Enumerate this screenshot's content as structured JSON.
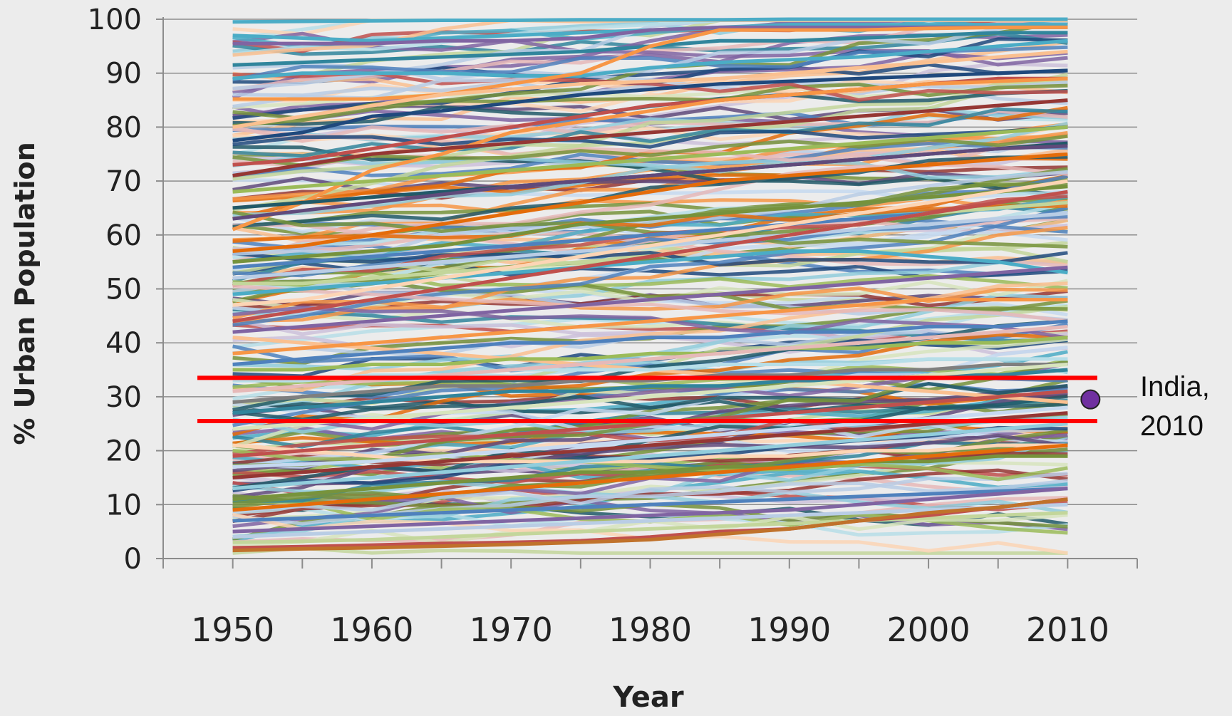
{
  "chart_data": {
    "type": "line",
    "title": "",
    "xlabel": "Year",
    "ylabel": "% Urban Population",
    "xlim": [
      1945,
      2015
    ],
    "ylim": [
      0,
      100
    ],
    "x_ticks": [
      1950,
      1960,
      1970,
      1980,
      1990,
      2000,
      2010
    ],
    "y_ticks": [
      0,
      10,
      20,
      30,
      40,
      50,
      60,
      70,
      80,
      90,
      100
    ],
    "x": [
      1950,
      1955,
      1960,
      1965,
      1970,
      1975,
      1980,
      1985,
      1990,
      1995,
      2000,
      2005,
      2010
    ],
    "grid": "horizontal",
    "legend": "none",
    "series_note": "one line per country (~200 countries)",
    "series": [
      {
        "values": [
          99.5,
          99.6,
          99.7,
          99.8,
          99.8,
          99.9,
          99.9,
          99.9,
          100,
          100,
          100,
          100,
          100
        ],
        "color": "#4bacc6"
      },
      {
        "values": [
          97,
          96.5,
          96,
          96.5,
          97,
          97.5,
          98,
          98.5,
          99,
          99,
          99,
          99,
          99
        ],
        "color": "#4bacc6"
      },
      {
        "values": [
          95.5,
          95.5,
          95.5,
          96,
          96,
          96.5,
          98,
          98.5,
          98.5,
          98.5,
          98.5,
          98.5,
          98.5
        ],
        "color": "#8064a2"
      },
      {
        "values": [
          91.5,
          92,
          92.5,
          93,
          93.5,
          94,
          95,
          96,
          96,
          96.5,
          97,
          97.5,
          97.5
        ],
        "color": "#31859c"
      },
      {
        "values": [
          89,
          90,
          90,
          90,
          89.5,
          89.5,
          91,
          92,
          92.5,
          93,
          94,
          95,
          96
        ],
        "color": "#4bacc6"
      },
      {
        "values": [
          85.2,
          85.2,
          85.2,
          86,
          88,
          90,
          95,
          98,
          98,
          98,
          98.3,
          98.5,
          98.5
        ],
        "color": "#f79646"
      },
      {
        "values": [
          80,
          82,
          84,
          86,
          87,
          88,
          88.5,
          89,
          90,
          91,
          92,
          93,
          94
        ],
        "color": "#fac090"
      },
      {
        "values": [
          77.5,
          79,
          82,
          83,
          84.5,
          86,
          87,
          88,
          88.5,
          89,
          89.5,
          90,
          90.5
        ],
        "color": "#1f497d"
      },
      {
        "values": [
          73,
          74,
          76,
          78,
          80,
          82,
          84,
          85,
          86,
          87,
          88,
          89,
          89
        ],
        "color": "#c0504d"
      },
      {
        "values": [
          61,
          66,
          72,
          75,
          79,
          81,
          83,
          85,
          86,
          87,
          88,
          88.5,
          89
        ],
        "color": "#f79646"
      },
      {
        "values": [
          71,
          73,
          75,
          76,
          77,
          78,
          79,
          80,
          81,
          82,
          83,
          84,
          85
        ],
        "color": "#953734"
      },
      {
        "values": [
          68,
          69,
          70,
          71,
          72,
          73,
          74,
          75,
          76,
          77,
          78,
          79,
          80
        ],
        "color": "#9bbb59"
      },
      {
        "values": [
          65,
          66,
          67,
          68,
          69,
          70,
          71,
          72,
          73,
          74,
          75,
          76,
          77
        ],
        "color": "#215968"
      },
      {
        "values": [
          63,
          64.5,
          66,
          67.5,
          69,
          70,
          71,
          72,
          73,
          74,
          75,
          76,
          76.5
        ],
        "color": "#604a7b"
      },
      {
        "values": [
          57,
          58,
          60,
          62,
          64,
          66,
          68,
          70,
          71,
          72,
          73,
          74,
          75
        ],
        "color": "#e46c0a"
      },
      {
        "values": [
          55,
          56,
          57,
          58,
          60,
          62,
          63,
          64,
          65,
          66,
          67,
          68,
          69
        ],
        "color": "#76923c"
      },
      {
        "values": [
          54,
          55,
          56,
          57,
          58,
          59,
          60,
          61,
          62,
          63,
          64,
          65,
          66
        ],
        "color": "#4f81bd"
      },
      {
        "values": [
          52,
          53,
          54,
          55,
          56,
          57,
          58,
          59,
          60,
          61,
          62,
          63,
          64
        ],
        "color": "#b9cde5"
      },
      {
        "values": [
          51,
          51,
          52,
          53,
          54,
          55,
          56,
          58,
          60,
          62,
          64,
          65,
          66
        ],
        "color": "#c3d69b"
      },
      {
        "values": [
          49,
          50,
          51,
          52,
          53,
          54,
          55,
          56,
          57,
          57,
          56,
          55,
          53
        ],
        "color": "#4bacc6"
      },
      {
        "values": [
          47,
          48,
          50,
          52,
          54,
          56,
          58,
          60,
          62,
          64,
          66,
          68,
          70
        ],
        "color": "#fcd5b5"
      },
      {
        "values": [
          44,
          46,
          48,
          50,
          52,
          54,
          56,
          58,
          60,
          62,
          64,
          66,
          68
        ],
        "color": "#c0504d"
      },
      {
        "values": [
          42,
          43,
          44,
          45,
          46,
          47,
          48,
          49,
          50,
          51,
          52,
          53,
          54
        ],
        "color": "#8064a2"
      },
      {
        "values": [
          41,
          40,
          39,
          38,
          37,
          36,
          35,
          34,
          33,
          32,
          31,
          30,
          29
        ],
        "color": "#fac090"
      },
      {
        "values": [
          38,
          39,
          40,
          41,
          42,
          43,
          44,
          45,
          46,
          47,
          48,
          48,
          48
        ],
        "color": "#f79646"
      },
      {
        "values": [
          36,
          37,
          38,
          39,
          40,
          40,
          41,
          41,
          42,
          42,
          43,
          43,
          44
        ],
        "color": "#4f81bd"
      },
      {
        "values": [
          35,
          35,
          36,
          36,
          37,
          37,
          38,
          38,
          39,
          39,
          40,
          40,
          41
        ],
        "color": "#9bbb59"
      },
      {
        "values": [
          33,
          33,
          34,
          34,
          35,
          35,
          35,
          36,
          36,
          36,
          37,
          37,
          37
        ],
        "color": "#b7dee8"
      },
      {
        "values": [
          31,
          32,
          33,
          34,
          35,
          36,
          37,
          38,
          39,
          40,
          41,
          42,
          43
        ],
        "color": "#e6b9b8"
      },
      {
        "values": [
          29,
          30,
          31,
          32,
          32,
          33,
          33,
          34,
          34,
          35,
          35,
          36,
          36
        ],
        "color": "#7f7f7f"
      },
      {
        "values": [
          27,
          28,
          29,
          30,
          31,
          31,
          32,
          32,
          33,
          33,
          34,
          34,
          35
        ],
        "color": "#31859c"
      },
      {
        "values": [
          24,
          25,
          26,
          27,
          28,
          29,
          30,
          31,
          32,
          33,
          34,
          35,
          36
        ],
        "color": "#d7e4bd"
      },
      {
        "values": [
          21,
          20,
          19,
          18,
          18,
          18,
          18,
          19,
          19,
          20,
          20,
          21,
          21
        ],
        "color": "#fcd5b5"
      },
      {
        "values": [
          19,
          20,
          21,
          22,
          23,
          24,
          25,
          26,
          27,
          28,
          29,
          30,
          31
        ],
        "color": "#c0504d"
      },
      {
        "values": [
          17,
          17.5,
          18,
          19,
          20,
          21,
          22,
          23,
          24,
          25,
          26,
          27,
          28
        ],
        "color": "#c6d9f0"
      },
      {
        "values": [
          15,
          16,
          17,
          18,
          19,
          20,
          21,
          22,
          23,
          24,
          25,
          26,
          27
        ],
        "color": "#953734"
      },
      {
        "values": [
          13,
          14,
          15,
          16,
          17,
          18,
          19,
          20,
          21,
          22,
          23,
          24,
          25
        ],
        "color": "#92cddc"
      },
      {
        "values": [
          11,
          12,
          13,
          14,
          15,
          16,
          16,
          17,
          17,
          18,
          18,
          19,
          19
        ],
        "color": "#77933c"
      },
      {
        "values": [
          9,
          10,
          11,
          12,
          13,
          14,
          15,
          16,
          17,
          18,
          19,
          20,
          21
        ],
        "color": "#e46c0a"
      },
      {
        "values": [
          7,
          7.5,
          8,
          8.5,
          9,
          9.5,
          10,
          10.5,
          11,
          11.5,
          12,
          12.5,
          13
        ],
        "color": "#4f81bd"
      },
      {
        "values": [
          5,
          5.5,
          6,
          6.5,
          7,
          7.5,
          8,
          8.5,
          9,
          10,
          11,
          12,
          13
        ],
        "color": "#8064a2"
      },
      {
        "values": [
          4,
          4.5,
          5,
          5.5,
          6,
          6.5,
          7,
          7.5,
          8,
          8.5,
          9,
          9.5,
          10
        ],
        "color": "#b9cde5"
      },
      {
        "values": [
          3,
          3.2,
          3.5,
          4,
          4.5,
          5,
          5.5,
          6,
          6.5,
          7,
          7.5,
          8,
          8.5
        ],
        "color": "#c3d69b"
      },
      {
        "values": [
          2,
          2.2,
          2.5,
          2.8,
          3,
          3.3,
          4,
          5,
          5.5,
          7,
          8,
          9.5,
          11
        ],
        "color": "#c0504d"
      },
      {
        "values": [
          1.5,
          1.8,
          2,
          2.3,
          2.6,
          3,
          3.5,
          4.5,
          5.5,
          7,
          8.5,
          9.5,
          11
        ],
        "color": "#c0722b"
      }
    ],
    "reference_lines": [
      {
        "y": 33.5,
        "color": "#ff0000"
      },
      {
        "y": 25.5,
        "color": "#ff0000"
      }
    ],
    "highlight_point": {
      "x": 2010,
      "y": 29.5,
      "color": "#7030a0",
      "label_line1": "India,",
      "label_line2": "2010"
    }
  }
}
